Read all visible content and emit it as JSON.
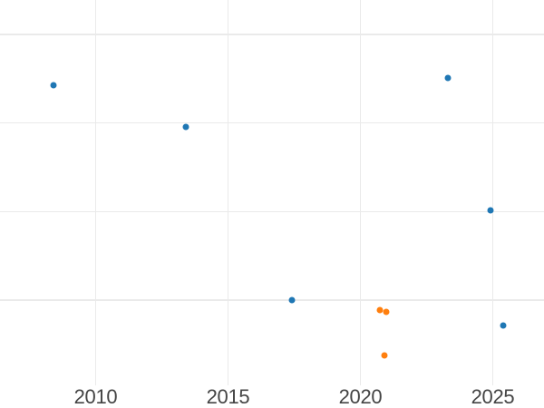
{
  "chart_data": {
    "type": "scatter",
    "title": "",
    "xlabel": "",
    "ylabel": "",
    "x_tick_labels": [
      "2010",
      "2015",
      "2020",
      "2025"
    ],
    "y_tick_labels": [],
    "xlim": [
      2006.4,
      2026.9
    ],
    "ylim": [
      -0.96,
      3.39
    ],
    "grid": "on",
    "legend_position": "none",
    "note": "y-axis gridlines are unlabeled; y values given in gridline units (0 = lowest visible gridline, 1 unit per gridline step)",
    "x_ticks": [
      {
        "label": "2010",
        "value": 2010
      },
      {
        "label": "2015",
        "value": 2015
      },
      {
        "label": "2020",
        "value": 2020
      },
      {
        "label": "2025",
        "value": 2025
      }
    ],
    "y_gridlines": [
      0,
      1,
      2,
      3
    ],
    "series": [
      {
        "name": "blue-series",
        "color": "#1f77b4",
        "marker": "circle",
        "points": [
          {
            "x": 2008.4,
            "y": 2.43
          },
          {
            "x": 2013.4,
            "y": 1.96
          },
          {
            "x": 2017.4,
            "y": 0.0
          },
          {
            "x": 2023.3,
            "y": 2.51
          },
          {
            "x": 2024.9,
            "y": 1.01
          },
          {
            "x": 2025.4,
            "y": -0.29
          }
        ]
      },
      {
        "name": "orange-series",
        "color": "#ff7f0e",
        "marker": "circle",
        "points": [
          {
            "x": 2020.75,
            "y": -0.11
          },
          {
            "x": 2020.99,
            "y": -0.13
          },
          {
            "x": 2020.9,
            "y": -0.62
          }
        ]
      }
    ]
  },
  "style": {
    "background": "#ffffff",
    "gridline_color": "#eaeaea",
    "tick_label_color": "#444444",
    "blue": "#1f77b4",
    "orange": "#ff7f0e"
  }
}
